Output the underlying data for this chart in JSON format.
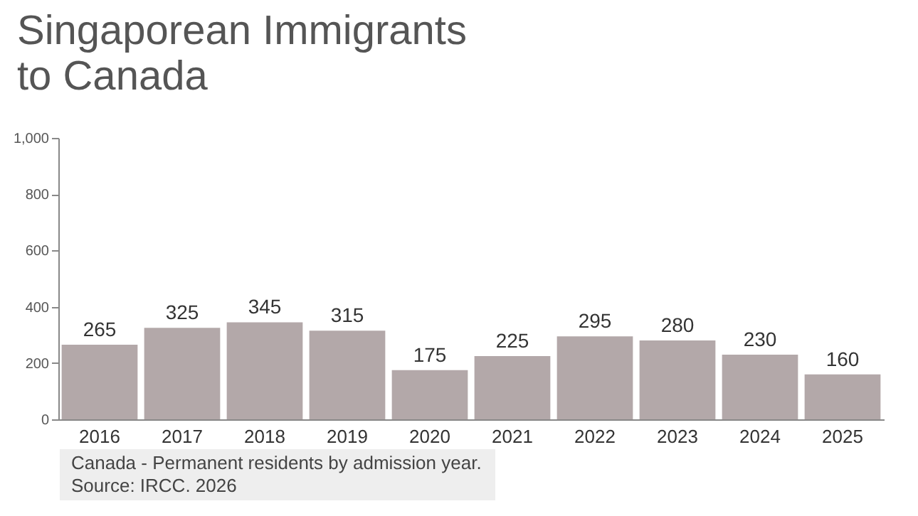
{
  "chart_data": {
    "type": "bar",
    "title": "Singaporean Immigrants",
    "subtitle": "to Canada",
    "categories": [
      "2016",
      "2017",
      "2018",
      "2019",
      "2020",
      "2021",
      "2022",
      "2023",
      "2024",
      "2025"
    ],
    "values": [
      265,
      325,
      345,
      315,
      175,
      225,
      295,
      280,
      230,
      160
    ],
    "color": "#b3a8a9",
    "ylim": [
      0,
      1000
    ],
    "yticks": [
      0,
      200,
      400,
      600,
      800,
      {
        "value": 1000,
        "label": "1,000"
      }
    ],
    "grid": false,
    "data_labels": true,
    "annotations": [
      "Canada - Permanent residents by admission year.",
      "Source: IRCC. 2026"
    ]
  }
}
